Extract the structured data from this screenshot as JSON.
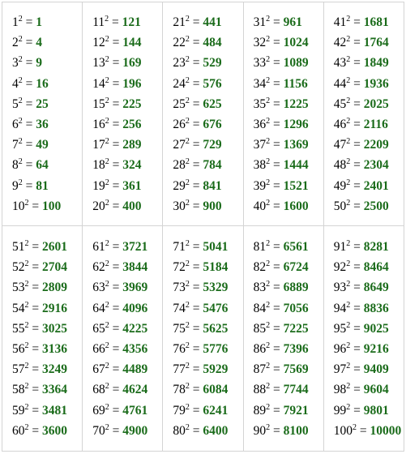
{
  "exponent": "2",
  "equals": "=",
  "result_color": "#1a6b1a",
  "rows": [
    [
      [
        [
          "1",
          "1"
        ],
        [
          "2",
          "4"
        ],
        [
          "3",
          "9"
        ],
        [
          "4",
          "16"
        ],
        [
          "5",
          "25"
        ],
        [
          "6",
          "36"
        ],
        [
          "7",
          "49"
        ],
        [
          "8",
          "64"
        ],
        [
          "9",
          "81"
        ],
        [
          "10",
          "100"
        ]
      ],
      [
        [
          "11",
          "121"
        ],
        [
          "12",
          "144"
        ],
        [
          "13",
          "169"
        ],
        [
          "14",
          "196"
        ],
        [
          "15",
          "225"
        ],
        [
          "16",
          "256"
        ],
        [
          "17",
          "289"
        ],
        [
          "18",
          "324"
        ],
        [
          "19",
          "361"
        ],
        [
          "20",
          "400"
        ]
      ],
      [
        [
          "21",
          "441"
        ],
        [
          "22",
          "484"
        ],
        [
          "23",
          "529"
        ],
        [
          "24",
          "576"
        ],
        [
          "25",
          "625"
        ],
        [
          "26",
          "676"
        ],
        [
          "27",
          "729"
        ],
        [
          "28",
          "784"
        ],
        [
          "29",
          "841"
        ],
        [
          "30",
          "900"
        ]
      ],
      [
        [
          "31",
          "961"
        ],
        [
          "32",
          "1024"
        ],
        [
          "33",
          "1089"
        ],
        [
          "34",
          "1156"
        ],
        [
          "35",
          "1225"
        ],
        [
          "36",
          "1296"
        ],
        [
          "37",
          "1369"
        ],
        [
          "38",
          "1444"
        ],
        [
          "39",
          "1521"
        ],
        [
          "40",
          "1600"
        ]
      ],
      [
        [
          "41",
          "1681"
        ],
        [
          "42",
          "1764"
        ],
        [
          "43",
          "1849"
        ],
        [
          "44",
          "1936"
        ],
        [
          "45",
          "2025"
        ],
        [
          "46",
          "2116"
        ],
        [
          "47",
          "2209"
        ],
        [
          "48",
          "2304"
        ],
        [
          "49",
          "2401"
        ],
        [
          "50",
          "2500"
        ]
      ]
    ],
    [
      [
        [
          "51",
          "2601"
        ],
        [
          "52",
          "2704"
        ],
        [
          "53",
          "2809"
        ],
        [
          "54",
          "2916"
        ],
        [
          "55",
          "3025"
        ],
        [
          "56",
          "3136"
        ],
        [
          "57",
          "3249"
        ],
        [
          "58",
          "3364"
        ],
        [
          "59",
          "3481"
        ],
        [
          "60",
          "3600"
        ]
      ],
      [
        [
          "61",
          "3721"
        ],
        [
          "62",
          "3844"
        ],
        [
          "63",
          "3969"
        ],
        [
          "64",
          "4096"
        ],
        [
          "65",
          "4225"
        ],
        [
          "66",
          "4356"
        ],
        [
          "67",
          "4489"
        ],
        [
          "68",
          "4624"
        ],
        [
          "69",
          "4761"
        ],
        [
          "70",
          "4900"
        ]
      ],
      [
        [
          "71",
          "5041"
        ],
        [
          "72",
          "5184"
        ],
        [
          "73",
          "5329"
        ],
        [
          "74",
          "5476"
        ],
        [
          "75",
          "5625"
        ],
        [
          "76",
          "5776"
        ],
        [
          "77",
          "5929"
        ],
        [
          "78",
          "6084"
        ],
        [
          "79",
          "6241"
        ],
        [
          "80",
          "6400"
        ]
      ],
      [
        [
          "81",
          "6561"
        ],
        [
          "82",
          "6724"
        ],
        [
          "83",
          "6889"
        ],
        [
          "84",
          "7056"
        ],
        [
          "85",
          "7225"
        ],
        [
          "86",
          "7396"
        ],
        [
          "87",
          "7569"
        ],
        [
          "88",
          "7744"
        ],
        [
          "89",
          "7921"
        ],
        [
          "90",
          "8100"
        ]
      ],
      [
        [
          "91",
          "8281"
        ],
        [
          "92",
          "8464"
        ],
        [
          "93",
          "8649"
        ],
        [
          "94",
          "8836"
        ],
        [
          "95",
          "9025"
        ],
        [
          "96",
          "9216"
        ],
        [
          "97",
          "9409"
        ],
        [
          "98",
          "9604"
        ],
        [
          "99",
          "9801"
        ],
        [
          "100",
          "10000"
        ]
      ]
    ]
  ]
}
